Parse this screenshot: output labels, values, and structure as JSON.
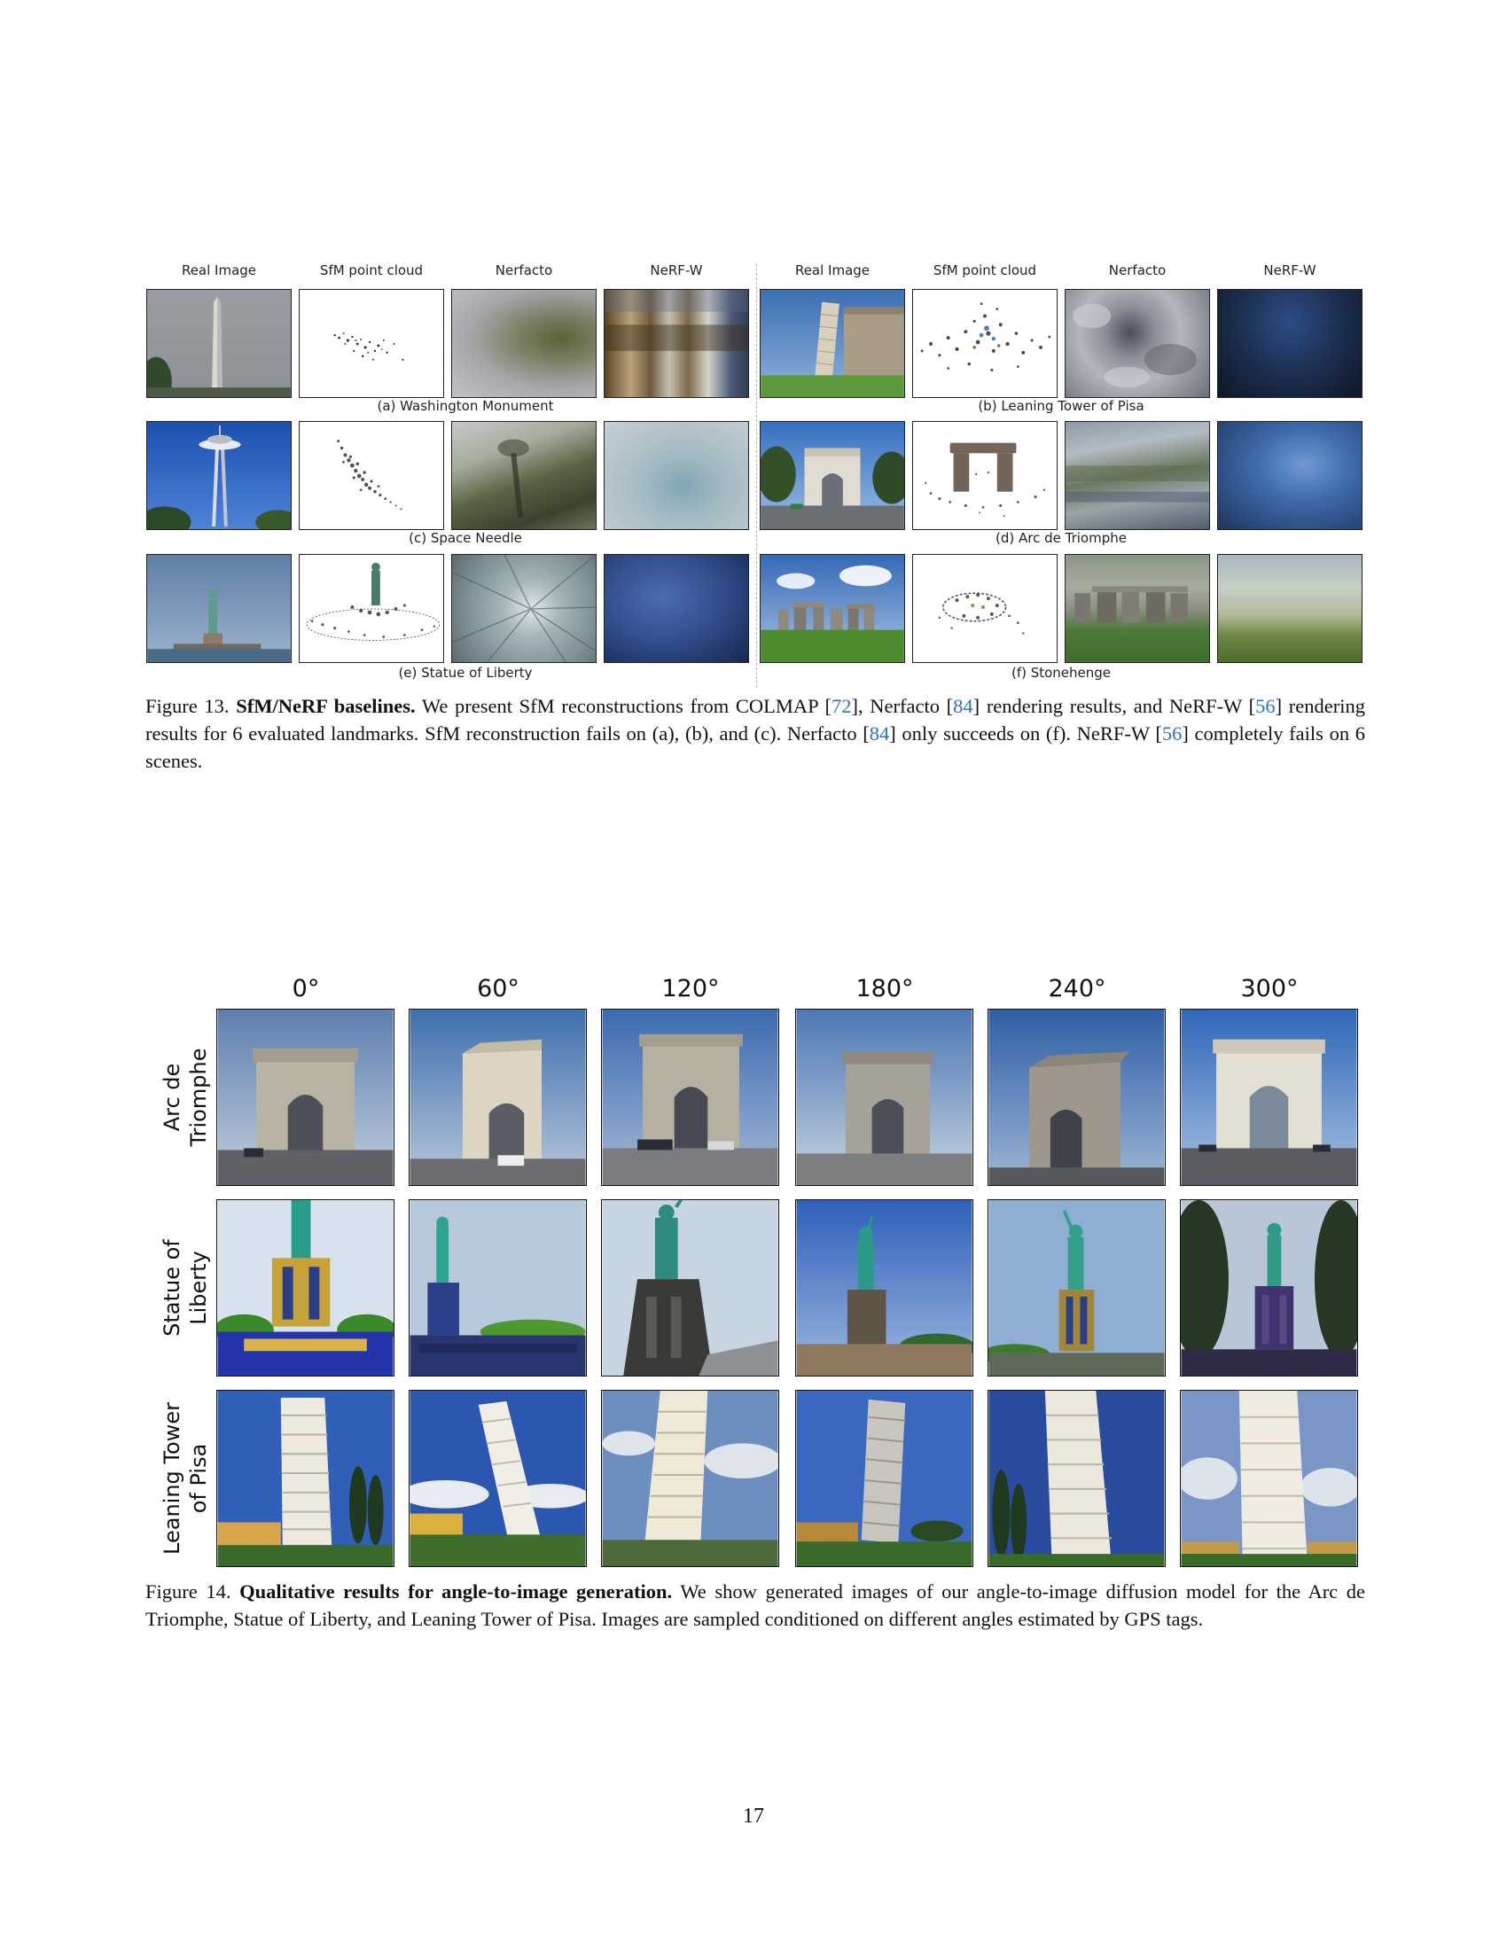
{
  "figure13": {
    "column_headers": [
      "Real Image",
      "SfM point cloud",
      "Nerfacto",
      "NeRF-W",
      "Real Image",
      "SfM point cloud",
      "Nerfacto",
      "NeRF-W"
    ],
    "subcaptions": [
      "(a) Washington Monument",
      "(b) Leaning Tower of Pisa",
      "(c) Space Needle",
      "(d) Arc de Triomphe",
      "(e) Statue of Liberty",
      "(f) Stonehenge"
    ],
    "caption": {
      "label": "Figure 13.",
      "bold": "SfM/NeRF baselines.",
      "t1": " We present SfM reconstructions from COLMAP [",
      "r1": "72",
      "t2": "], Nerfacto [",
      "r2": "84",
      "t3": "] rendering results, and NeRF-W [",
      "r3": "56",
      "t4": "] rendering results for 6 evaluated landmarks. SfM reconstruction fails on (a), (b), and (c). Nerfacto [",
      "r4": "84",
      "t5": "] only succeeds on (f). NeRF-W [",
      "r5": "56",
      "t6": "] completely fails on 6 scenes."
    }
  },
  "figure14": {
    "angles": [
      "0°",
      "60°",
      "120°",
      "180°",
      "240°",
      "300°"
    ],
    "rows": [
      {
        "line1": "Arc de",
        "line2": "Triomphe"
      },
      {
        "line1": "Statue of",
        "line2": "Liberty"
      },
      {
        "line1": "Leaning Tower",
        "line2": "of Pisa"
      }
    ],
    "caption": {
      "label": "Figure 14.",
      "bold": "Qualitative results for angle-to-image generation.",
      "text": " We show generated images of our angle-to-image diffusion model for the Arc de Triomphe, Statue of Liberty, and Leaning Tower of Pisa. Images are sampled conditioned on different angles estimated by GPS tags."
    }
  },
  "page_number": "17"
}
